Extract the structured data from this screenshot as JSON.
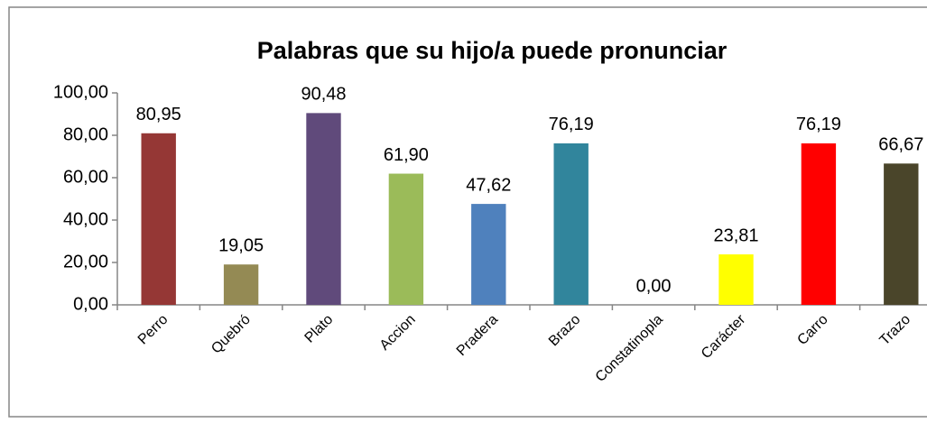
{
  "chart_data": {
    "type": "bar",
    "title": "Palabras que su hijo/a puede pronunciar",
    "categories": [
      "Perro",
      "Quebró",
      "Plato",
      "Accion",
      "Pradera",
      "Brazo",
      "Constatinopla",
      "Carácter",
      "Carro",
      "Trazo"
    ],
    "values": [
      80.95,
      19.05,
      90.48,
      61.9,
      47.62,
      76.19,
      0.0,
      23.81,
      76.19,
      66.67
    ],
    "value_labels": [
      "80,95",
      "19,05",
      "90,48",
      "61,90",
      "47,62",
      "76,19",
      "0,00",
      "23,81",
      "76,19",
      "66,67"
    ],
    "colors": [
      "#953735",
      "#948a54",
      "#604a7b",
      "#9bbb59",
      "#4f81bd",
      "#31859c",
      "#c0504d",
      "#ffff00",
      "#ff0000",
      "#4a452a"
    ],
    "ylim": [
      0,
      100
    ],
    "yticks": [
      {
        "value": 0,
        "label": "0,00"
      },
      {
        "value": 20,
        "label": "20,00"
      },
      {
        "value": 40,
        "label": "40,00"
      },
      {
        "value": 60,
        "label": "60,00"
      },
      {
        "value": 80,
        "label": "80,00"
      },
      {
        "value": 100,
        "label": "100,00"
      }
    ],
    "grid": false
  }
}
